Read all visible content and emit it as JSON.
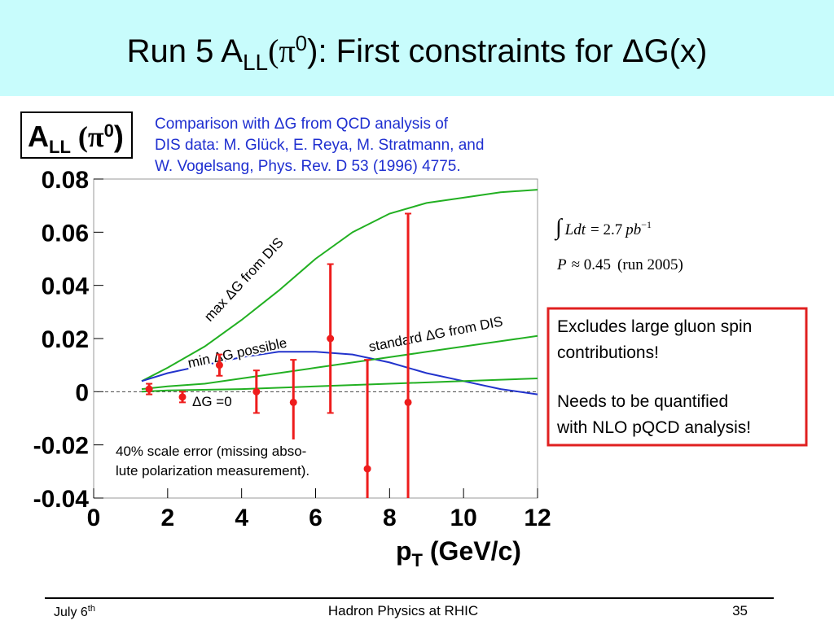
{
  "slide_title": [
    "Run 5 A",
    "LL",
    "(π",
    "0",
    "): First constraints for ΔG(x)"
  ],
  "comparison_note": [
    "Comparison with ΔG from QCD analysis of",
    "DIS data:  M. Glück, E. Reya, M. Stratmann, and",
    "W. Vogelsang, Phys. Rev. D 53 (1996) 4775."
  ],
  "luminosity": [
    "∫",
    "Ldt",
    "= 2.7",
    "pb",
    "−1"
  ],
  "polarization": [
    "P",
    "≈ 0.45",
    "(run 2005)"
  ],
  "conclusions": [
    "Excludes large gluon spin",
    "contributions!",
    "Needs to be quantified",
    "with NLO pQCD analysis!"
  ],
  "footer": {
    "date": [
      "July 6",
      "th"
    ],
    "event": "Hadron Physics at RHIC",
    "page": "35"
  },
  "chart_data": {
    "type": "line",
    "y_label": [
      "A",
      "LL",
      " (π",
      "0",
      ")"
    ],
    "x_label": [
      "p",
      "T",
      " (GeV/c)"
    ],
    "annotation": [
      "40% scale error (missing abso-",
      "lute polarization measurement)."
    ],
    "xlim": [
      0,
      12
    ],
    "xticks": [
      0,
      2,
      4,
      6,
      8,
      10,
      12
    ],
    "ylim": [
      -0.04,
      0.08
    ],
    "yticks": [
      0.08,
      0.06,
      0.04,
      0.02,
      0,
      -0.02,
      -0.04
    ],
    "series": [
      {
        "name": "max ΔG from DIS",
        "color": "#22b022",
        "x": [
          1.3,
          2,
          3,
          4,
          5,
          6,
          7,
          8,
          9,
          10,
          11,
          12
        ],
        "values": [
          0.004,
          0.009,
          0.017,
          0.027,
          0.038,
          0.05,
          0.06,
          0.067,
          0.071,
          0.073,
          0.075,
          0.076
        ]
      },
      {
        "name": "min ΔG possible",
        "color": "#2233cc",
        "x": [
          1.3,
          2,
          3,
          4,
          5,
          6,
          7,
          8,
          9,
          10,
          11,
          12
        ],
        "values": [
          0.004,
          0.007,
          0.01,
          0.013,
          0.015,
          0.015,
          0.014,
          0.011,
          0.007,
          0.004,
          0.001,
          -0.001
        ]
      },
      {
        "name": "standard ΔG from DIS",
        "color": "#22b022",
        "x": [
          1.3,
          2,
          3,
          4,
          5,
          6,
          7,
          8,
          9,
          10,
          11,
          12
        ],
        "values": [
          0.001,
          0.002,
          0.003,
          0.005,
          0.007,
          0.009,
          0.011,
          0.013,
          0.015,
          0.017,
          0.019,
          0.021
        ]
      },
      {
        "name": "ΔG =0",
        "color": "#22b022",
        "x": [
          1.3,
          2,
          4,
          6,
          8,
          10,
          12
        ],
        "values": [
          0,
          0.0005,
          0.001,
          0.002,
          0.003,
          0.004,
          0.005
        ]
      }
    ],
    "measurements": {
      "color": "#ee1c1c",
      "x": [
        1.5,
        2.4,
        3.4,
        4.4,
        5.4,
        6.4,
        7.4,
        8.5
      ],
      "values": [
        0.001,
        -0.002,
        0.01,
        0,
        -0.004,
        0.02,
        -0.029,
        -0.004
      ],
      "errors": [
        0.002,
        0.002,
        0.004,
        0.008,
        0.016,
        0.028,
        0.041,
        0.071
      ]
    }
  }
}
